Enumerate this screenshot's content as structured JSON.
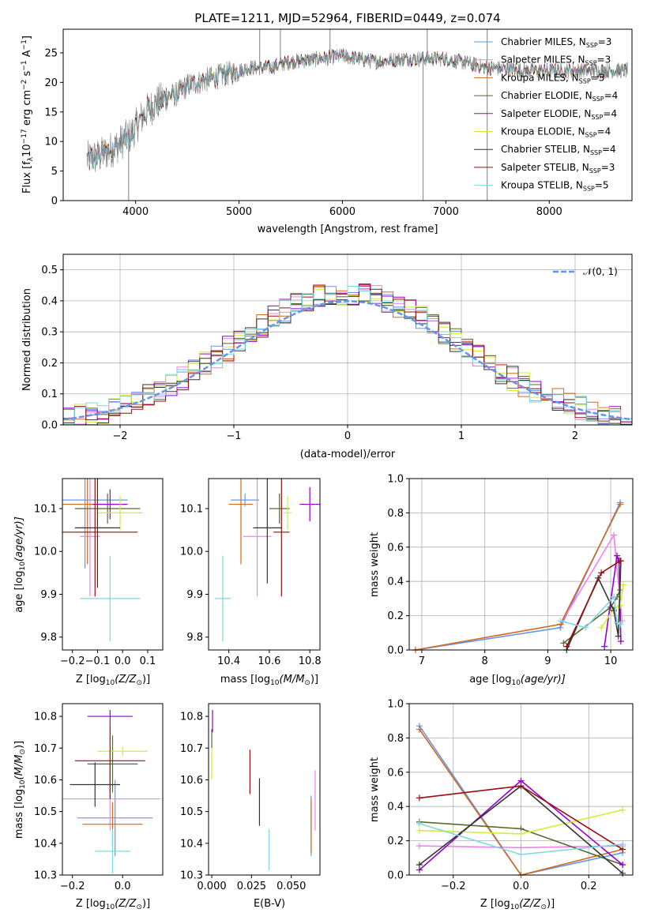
{
  "chart_data": [
    {
      "type": "line",
      "title": "PLATE=1211, MJD=52964, FIBERID=0449, z=0.074",
      "xlabel": "wavelength [Angstrom, rest frame]",
      "ylabel": "Flux [f$_\\lambda$10$^{-17}$ erg cm$^{-2}$ s$^{-1}$ A$^{-1}$]",
      "ylabel_parts": [
        "Flux [f",
        "λ",
        "10",
        "−17",
        " erg cm",
        "−2",
        " s",
        "−1",
        " A",
        "−1",
        "]"
      ],
      "xlim": [
        3300,
        8800
      ],
      "ylim": [
        0,
        29
      ],
      "xticks": [
        4000,
        5000,
        6000,
        7000,
        8000
      ],
      "yticks": [
        0,
        5,
        10,
        15,
        20,
        25
      ],
      "legend_loc": "upper right",
      "series": [
        {
          "name": "Chabrier MILES, N$_{SSP}$=3",
          "label_main": "Chabrier MILES, N",
          "label_sub": "SSP",
          "label_tail": "=3",
          "color": "#6495ed"
        },
        {
          "name": "Salpeter MILES, N$_{SSP}$=3",
          "label_main": "Salpeter MILES, N",
          "label_sub": "SSP",
          "label_tail": "=3",
          "color": "#ee82ee"
        },
        {
          "name": "Kroupa MILES, N$_{SSP}$=3",
          "label_main": "Kroupa MILES, N",
          "label_sub": "SSP",
          "label_tail": "=3",
          "color": "#d2691e"
        },
        {
          "name": "Chabrier ELODIE, N$_{SSP}$=4",
          "label_main": "Chabrier ELODIE, N",
          "label_sub": "SSP",
          "label_tail": "=4",
          "color": "#556b2f"
        },
        {
          "name": "Salpeter ELODIE, N$_{SSP}$=4",
          "label_main": "Salpeter ELODIE, N",
          "label_sub": "SSP",
          "label_tail": "=4",
          "color": "#9400d3"
        },
        {
          "name": "Kroupa ELODIE, N$_{SSP}$=4",
          "label_main": "Kroupa ELODIE, N",
          "label_sub": "SSP",
          "label_tail": "=4",
          "color": "#d4ec3a"
        },
        {
          "name": "Chabrier STELIB, N$_{SSP}$=4",
          "label_main": "Chabrier STELIB, N",
          "label_sub": "SSP",
          "label_tail": "=4",
          "color": "#333333"
        },
        {
          "name": "Salpeter STELIB, N$_{SSP}$=3",
          "label_main": "Salpeter STELIB, N",
          "label_sub": "SSP",
          "label_tail": "=3",
          "color": "#9b0d0d"
        },
        {
          "name": "Kroupa STELIB, N$_{SSP}$=5",
          "label_main": "Kroupa STELIB, N",
          "label_sub": "SSP",
          "label_tail": "=5",
          "color": "#7fd8e0"
        }
      ],
      "data_color": "#808080",
      "continuum": [
        [
          3530,
          7
        ],
        [
          3650,
          7.5
        ],
        [
          3800,
          9
        ],
        [
          3900,
          10.5
        ],
        [
          3950,
          11
        ],
        [
          4000,
          12.5
        ],
        [
          4100,
          15
        ],
        [
          4200,
          16.5
        ],
        [
          4300,
          17.5
        ],
        [
          4400,
          18
        ],
        [
          4500,
          19.5
        ],
        [
          4700,
          20.5
        ],
        [
          4900,
          21.5
        ],
        [
          5100,
          22.5
        ],
        [
          5300,
          22.5
        ],
        [
          5500,
          23.5
        ],
        [
          5800,
          24
        ],
        [
          6000,
          24.5
        ],
        [
          6300,
          23.5
        ],
        [
          6600,
          24
        ],
        [
          7000,
          24
        ],
        [
          7400,
          22.5
        ],
        [
          7800,
          22
        ],
        [
          8200,
          22
        ],
        [
          8600,
          22
        ],
        [
          8760,
          22
        ]
      ],
      "dips": [
        [
          3933,
          0
        ],
        [
          6780,
          0
        ],
        [
          7400,
          0
        ]
      ],
      "spikes": [
        [
          5200,
          29
        ],
        [
          5400,
          29
        ],
        [
          5880,
          29
        ],
        [
          6820,
          29
        ],
        [
          7400,
          29
        ]
      ]
    },
    {
      "type": "line",
      "xlabel": "(data-model)/error",
      "ylabel": "Normed distribution",
      "xlim": [
        -2.5,
        2.5
      ],
      "ylim": [
        0,
        0.55
      ],
      "xticks": [
        -2,
        -1,
        0,
        1,
        2
      ],
      "xticklabels": [
        "−2",
        "−1",
        "0",
        "1",
        "2"
      ],
      "yticks": [
        0.0,
        0.1,
        0.2,
        0.3,
        0.4,
        0.5
      ],
      "yticklabels": [
        "0.0",
        "0.1",
        "0.2",
        "0.3",
        "0.4",
        "0.5"
      ],
      "grid": true,
      "legend_loc": "upper right",
      "gaussian_label": "𝒩(0, 1)",
      "gaussian_color": "#6495ed",
      "bin_width": 0.1
    },
    {
      "type": "scatter",
      "xlabel": "Z [log$_{10}$(Z/Z$_\\odot$)]",
      "xlabel_text": "Z [log",
      "xlabel_sub": "10",
      "xlabel_tail": "(Z/Z",
      "xlabel_sub2": "⊙",
      "xlabel_end": ")]",
      "ylabel": "age  [log$_{10}$(age/yr)]",
      "ylabel_text": "age  [log",
      "ylabel_sub": "10",
      "ylabel_tail": "(age/yr)]",
      "xlim": [
        -0.24,
        0.16
      ],
      "ylim": [
        9.77,
        10.17
      ],
      "xticks": [
        -0.2,
        -0.1,
        0.0,
        0.1
      ],
      "xticklabels": [
        "−0.2",
        "−0.1",
        "0.0",
        "0.1"
      ],
      "yticks": [
        9.8,
        9.9,
        10.0,
        10.1
      ],
      "yticklabels": [
        "9.8",
        "9.9",
        "10.0",
        "10.1"
      ],
      "points": [
        {
          "x": -0.15,
          "xerr": 0.17,
          "y": 10.12,
          "yerr": 0.16,
          "color": "#6495ed"
        },
        {
          "x": -0.13,
          "xerr": 0.04,
          "y": 10.035,
          "yerr": 0.14,
          "color": "#ee82ee"
        },
        {
          "x": -0.14,
          "xerr": 0.15,
          "y": 10.11,
          "yerr": 0.14,
          "color": "#d2691e"
        },
        {
          "x": -0.06,
          "xerr": 0.13,
          "y": 10.1,
          "yerr": 0.035,
          "color": "#556b2f"
        },
        {
          "x": -0.05,
          "xerr": 0.07,
          "y": 10.11,
          "yerr": 0.035,
          "color": "#9400d3"
        },
        {
          "x": -0.01,
          "xerr": 0.09,
          "y": 10.09,
          "yerr": 0.04,
          "color": "#d4ec3a"
        },
        {
          "x": -0.1,
          "xerr": 0.09,
          "y": 10.055,
          "yerr": 0.14,
          "color": "#333333"
        },
        {
          "x": -0.11,
          "xerr": 0.17,
          "y": 10.045,
          "yerr": 0.15,
          "color": "#9b0d0d"
        },
        {
          "x": -0.05,
          "xerr": 0.12,
          "y": 9.89,
          "yerr": 0.1,
          "color": "#7fd8e0"
        }
      ]
    },
    {
      "type": "scatter",
      "xlabel": "mass [log$_{10}$(M/M$_\\odot$)]",
      "xlabel_text": "mass [log",
      "xlabel_sub": "10",
      "xlabel_tail": "(M/M",
      "xlabel_sub2": "⊙",
      "xlabel_end": ")]",
      "xlim": [
        10.3,
        10.85
      ],
      "ylim": [
        9.77,
        10.17
      ],
      "xticks": [
        10.4,
        10.6,
        10.8
      ],
      "xticklabels": [
        "10.4",
        "10.6",
        "10.8"
      ],
      "yticks": [
        9.8,
        9.9,
        10.0,
        10.1
      ],
      "yticklabels": [
        "9.8",
        "9.9",
        "10.0",
        "10.1"
      ],
      "points": [
        {
          "x": 10.48,
          "xerr": 0.07,
          "y": 10.12,
          "yerr": 0.015,
          "color": "#6495ed"
        },
        {
          "x": 10.54,
          "xerr": 0.07,
          "y": 10.035,
          "yerr": 0.14,
          "color": "#ee82ee"
        },
        {
          "x": 10.46,
          "xerr": 0.06,
          "y": 10.11,
          "yerr": 0.14,
          "color": "#d2691e"
        },
        {
          "x": 10.65,
          "xerr": 0.05,
          "y": 10.1,
          "yerr": 0.035,
          "color": "#556b2f"
        },
        {
          "x": 10.8,
          "xerr": 0.05,
          "y": 10.11,
          "yerr": 0.04,
          "color": "#9400d3"
        },
        {
          "x": 10.69,
          "xerr": 0.02,
          "y": 10.09,
          "yerr": 0.04,
          "color": "#d4ec3a"
        },
        {
          "x": 10.59,
          "xerr": 0.07,
          "y": 10.055,
          "yerr": 0.13,
          "color": "#333333"
        },
        {
          "x": 10.66,
          "xerr": 0.04,
          "y": 10.045,
          "yerr": 0.15,
          "color": "#9b0d0d"
        },
        {
          "x": 10.37,
          "xerr": 0.04,
          "y": 9.89,
          "yerr": 0.1,
          "color": "#7fd8e0"
        }
      ]
    },
    {
      "type": "line",
      "xlabel": "age  [log$_{10}$(age/yr)]",
      "xlabel_text": "age  [log",
      "xlabel_sub": "10",
      "xlabel_tail": "(age/yr)]",
      "ylabel": "mass weight",
      "xlim": [
        6.8,
        10.35
      ],
      "ylim": [
        0,
        1.0
      ],
      "xticks": [
        7,
        8,
        9,
        10
      ],
      "xticklabels": [
        "7",
        "8",
        "9",
        "10"
      ],
      "yticks": [
        0.0,
        0.2,
        0.4,
        0.6,
        0.8,
        1.0
      ],
      "yticklabels": [
        "0.0",
        "0.2",
        "0.4",
        "0.6",
        "0.8",
        "1.0"
      ],
      "grid": true,
      "series": [
        {
          "color": "#6495ed",
          "x": [
            6.9,
            9.2,
            10.15
          ],
          "y": [
            0.0,
            0.13,
            0.86
          ]
        },
        {
          "color": "#ee82ee",
          "x": [
            9.2,
            10.05,
            10.18
          ],
          "y": [
            0.15,
            0.67,
            0.17
          ]
        },
        {
          "color": "#d2691e",
          "x": [
            6.9,
            9.2,
            10.15
          ],
          "y": [
            0.0,
            0.15,
            0.85
          ]
        },
        {
          "color": "#556b2f",
          "x": [
            9.25,
            10.0,
            10.1,
            10.15
          ],
          "y": [
            0.04,
            0.25,
            0.31,
            0.35
          ]
        },
        {
          "color": "#9400d3",
          "x": [
            9.9,
            10.1,
            10.13,
            10.16
          ],
          "y": [
            0.02,
            0.55,
            0.52,
            0.05
          ]
        },
        {
          "color": "#d4ec3a",
          "x": [
            9.85,
            10.05,
            10.15,
            10.2
          ],
          "y": [
            0.13,
            0.24,
            0.26,
            0.38
          ]
        },
        {
          "color": "#333333",
          "x": [
            9.3,
            9.8,
            10.05,
            10.12,
            10.16
          ],
          "y": [
            0.0,
            0.42,
            0.23,
            0.08,
            0.52
          ]
        },
        {
          "color": "#9b0d0d",
          "x": [
            9.3,
            9.85,
            10.15
          ],
          "y": [
            0.02,
            0.45,
            0.52
          ]
        },
        {
          "color": "#7fd8e0",
          "x": [
            9.2,
            9.6,
            10.05,
            10.1,
            10.15
          ],
          "y": [
            0.17,
            0.13,
            0.31,
            0.16,
            0.15
          ]
        }
      ]
    },
    {
      "type": "scatter",
      "xlabel": "Z [log$_{10}$(Z/Z$_\\odot$)]",
      "xlabel_text": "Z [log",
      "xlabel_sub": "10",
      "xlabel_tail": "(Z/Z",
      "xlabel_sub2": "⊙",
      "xlabel_end": ")]",
      "ylabel": "mass [log$_{10}$(M/M$_\\odot$)]",
      "ylabel_text": "mass [log",
      "ylabel_sub": "10",
      "ylabel_tail": "(M/M",
      "ylabel_sub2": "⊙",
      "ylabel_end": ")]",
      "xlim": [
        -0.24,
        0.16
      ],
      "ylim": [
        10.3,
        10.84
      ],
      "xticks": [
        -0.2,
        0.0
      ],
      "xticklabels": [
        "−0.2",
        "0.0"
      ],
      "yticks": [
        10.3,
        10.4,
        10.5,
        10.6,
        10.7,
        10.8
      ],
      "yticklabels": [
        "10.3",
        "10.4",
        "10.5",
        "10.6",
        "10.7",
        "10.8"
      ],
      "points": [
        {
          "x": -0.03,
          "xerr": 0.15,
          "y": 10.48,
          "yerr": 0.12,
          "color": "#6495ed"
        },
        {
          "x": -0.05,
          "xerr": 0.2,
          "y": 10.54,
          "yerr": 0.1,
          "color": "#ee82ee"
        },
        {
          "x": -0.04,
          "xerr": 0.12,
          "y": 10.46,
          "yerr": 0.07,
          "color": "#d2691e"
        },
        {
          "x": -0.04,
          "xerr": 0.1,
          "y": 10.65,
          "yerr": 0.09,
          "color": "#556b2f"
        },
        {
          "x": -0.05,
          "xerr": 0.09,
          "y": 10.8,
          "yerr": 0.02,
          "color": "#9400d3"
        },
        {
          "x": 0.0,
          "xerr": 0.1,
          "y": 10.69,
          "yerr": 0.015,
          "color": "#d4ec3a"
        },
        {
          "x": -0.11,
          "xerr": 0.1,
          "y": 10.585,
          "yerr": 0.07,
          "color": "#333333"
        },
        {
          "x": -0.05,
          "xerr": 0.14,
          "y": 10.66,
          "yerr": 0.12,
          "color": "#9b0d0d"
        },
        {
          "x": -0.04,
          "xerr": 0.07,
          "y": 10.375,
          "yerr": 0.07,
          "color": "#7fd8e0"
        }
      ]
    },
    {
      "type": "scatter",
      "xlabel": "E(B-V)",
      "xlim": [
        -0.002,
        0.068
      ],
      "ylim": [
        10.3,
        10.84
      ],
      "xticks": [
        0.0,
        0.025,
        0.05
      ],
      "xticklabels": [
        "0.000",
        "0.025",
        "0.050"
      ],
      "yticks": [
        10.3,
        10.4,
        10.5,
        10.6,
        10.7,
        10.8
      ],
      "yticklabels": [
        "10.3",
        "10.4",
        "10.5",
        "10.6",
        "10.7",
        "10.8"
      ],
      "points": [
        {
          "x": 0.0625,
          "xerr": 0,
          "y": 10.455,
          "yerr": 0.095,
          "color": "#6495ed"
        },
        {
          "x": 0.065,
          "xerr": 0,
          "y": 10.535,
          "yerr": 0.095,
          "color": "#ee82ee"
        },
        {
          "x": 0.0625,
          "xerr": 0,
          "y": 10.455,
          "yerr": 0.085,
          "color": "#d2691e"
        },
        {
          "x": 0.0,
          "xerr": 0,
          "y": 10.73,
          "yerr": 0.03,
          "color": "#556b2f"
        },
        {
          "x": 0.0005,
          "xerr": 0,
          "y": 10.785,
          "yerr": 0.035,
          "color": "#9400d3"
        },
        {
          "x": 0.0,
          "xerr": 0,
          "y": 10.65,
          "yerr": 0.05,
          "color": "#d4ec3a"
        },
        {
          "x": 0.03,
          "xerr": 0,
          "y": 10.53,
          "yerr": 0.075,
          "color": "#333333"
        },
        {
          "x": 0.024,
          "xerr": 0,
          "y": 10.625,
          "yerr": 0.07,
          "color": "#9b0d0d"
        },
        {
          "x": 0.036,
          "xerr": 0,
          "y": 10.38,
          "yerr": 0.065,
          "color": "#7fd8e0"
        }
      ]
    },
    {
      "type": "line",
      "xlabel": "Z [log$_{10}$(Z/Z$_\\odot$)]",
      "xlabel_text": "Z [log",
      "xlabel_sub": "10",
      "xlabel_tail": "(Z/Z",
      "xlabel_sub2": "⊙",
      "xlabel_end": ")]",
      "ylabel": "mass weight",
      "xlim": [
        -0.33,
        0.33
      ],
      "ylim": [
        0,
        1.0
      ],
      "xticks": [
        -0.2,
        0.0,
        0.2
      ],
      "xticklabels": [
        "−0.2",
        "0.0",
        "0.2"
      ],
      "yticks": [
        0.0,
        0.2,
        0.4,
        0.6,
        0.8,
        1.0
      ],
      "yticklabels": [
        "0.0",
        "0.2",
        "0.4",
        "0.6",
        "0.8",
        "1.0"
      ],
      "grid": true,
      "series": [
        {
          "color": "#6495ed",
          "x": [
            -0.3,
            0.0,
            0.3
          ],
          "y": [
            0.87,
            0.0,
            0.13
          ]
        },
        {
          "color": "#ee82ee",
          "x": [
            -0.3,
            0.0,
            0.3
          ],
          "y": [
            0.17,
            0.16,
            0.17
          ]
        },
        {
          "color": "#d2691e",
          "x": [
            -0.3,
            0.0,
            0.3
          ],
          "y": [
            0.85,
            0.0,
            0.15
          ]
        },
        {
          "color": "#556b2f",
          "x": [
            -0.3,
            0.0,
            0.3
          ],
          "y": [
            0.31,
            0.27,
            0.06
          ]
        },
        {
          "color": "#9400d3",
          "x": [
            -0.3,
            0.0,
            0.3
          ],
          "y": [
            0.03,
            0.55,
            0.06
          ]
        },
        {
          "color": "#d4ec3a",
          "x": [
            -0.3,
            0.0,
            0.3
          ],
          "y": [
            0.26,
            0.24,
            0.38
          ]
        },
        {
          "color": "#333333",
          "x": [
            -0.3,
            0.0,
            0.3
          ],
          "y": [
            0.06,
            0.52,
            0.01
          ]
        },
        {
          "color": "#9b0d0d",
          "x": [
            -0.3,
            0.0,
            0.3
          ],
          "y": [
            0.45,
            0.52,
            0.15
          ]
        },
        {
          "color": "#7fd8e0",
          "x": [
            -0.3,
            0.0,
            0.3
          ],
          "y": [
            0.3,
            0.12,
            0.18
          ]
        }
      ]
    }
  ]
}
